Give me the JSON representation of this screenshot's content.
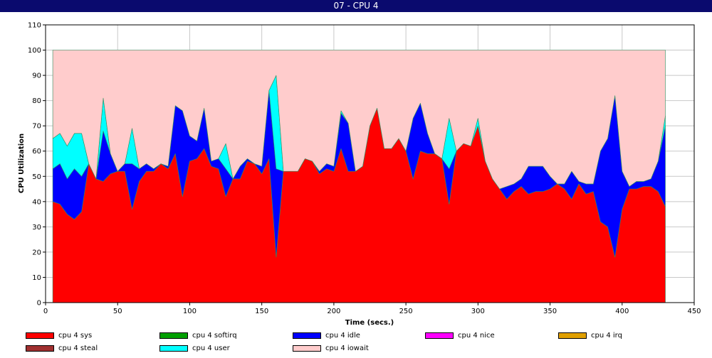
{
  "window": {
    "title": "07 - CPU 4"
  },
  "chart_data": {
    "type": "area",
    "stacked": true,
    "xlabel": "Time (secs.)",
    "ylabel": "CPU Utilization",
    "xlim": [
      0,
      450
    ],
    "ylim": [
      0,
      110
    ],
    "xticks": [
      0,
      50,
      100,
      150,
      200,
      250,
      300,
      350,
      400,
      450
    ],
    "yticks": [
      0,
      10,
      20,
      30,
      40,
      50,
      60,
      70,
      80,
      90,
      100,
      110
    ],
    "grid": true,
    "legend_position": "bottom",
    "x": [
      5,
      10,
      15,
      20,
      25,
      30,
      35,
      40,
      45,
      50,
      55,
      60,
      65,
      70,
      75,
      80,
      85,
      90,
      95,
      100,
      105,
      110,
      115,
      120,
      125,
      130,
      135,
      140,
      145,
      150,
      155,
      160,
      165,
      170,
      175,
      180,
      185,
      190,
      195,
      200,
      205,
      210,
      215,
      220,
      225,
      230,
      235,
      240,
      245,
      250,
      255,
      260,
      265,
      270,
      275,
      280,
      285,
      290,
      295,
      300,
      305,
      310,
      315,
      320,
      325,
      330,
      335,
      340,
      345,
      350,
      355,
      360,
      365,
      370,
      375,
      380,
      385,
      390,
      395,
      400,
      405,
      410,
      415,
      420,
      425,
      430
    ],
    "series": [
      {
        "name": "cpu 4 sys",
        "color": "#ff0000",
        "values": [
          40,
          39,
          35,
          33,
          36,
          55,
          49,
          48,
          51,
          52,
          52,
          37,
          48,
          52,
          52,
          55,
          53,
          59,
          42,
          56,
          57,
          61,
          54,
          53,
          42,
          49,
          49,
          56,
          55,
          51,
          57,
          18,
          52,
          52,
          52,
          57,
          56,
          51,
          53,
          52,
          61,
          52,
          52,
          54,
          70,
          77,
          61,
          61,
          65,
          60,
          49,
          60,
          59,
          59,
          57,
          39,
          60,
          63,
          62,
          70,
          56,
          49,
          45,
          41,
          44,
          46,
          43,
          44,
          44,
          45,
          47,
          45,
          41,
          47,
          43,
          44,
          32,
          30,
          18,
          37,
          45,
          45,
          46,
          46,
          44,
          38
        ]
      },
      {
        "name": "cpu 4 softirq",
        "color": "#00a000",
        "values": [
          0,
          0,
          0,
          0,
          0,
          0,
          0,
          0,
          0,
          0,
          0,
          0,
          0,
          0,
          0,
          0,
          0,
          0,
          0,
          0,
          0,
          0,
          0,
          0,
          0,
          0,
          0,
          0,
          0,
          0,
          0,
          0,
          0,
          0,
          0,
          0,
          0,
          0,
          0,
          0,
          0,
          0,
          0,
          0,
          0,
          0,
          0,
          0,
          0,
          0,
          0,
          0,
          0,
          0,
          0,
          0,
          0,
          0,
          0,
          0,
          0,
          0,
          0,
          0,
          0,
          0,
          0,
          0,
          0,
          0,
          0,
          0,
          0,
          0,
          0,
          0,
          0,
          0,
          0,
          0,
          0,
          0,
          0,
          0,
          0,
          0
        ]
      },
      {
        "name": "cpu 4 idle",
        "color": "#0000ff",
        "values": [
          13,
          16,
          14,
          20,
          14,
          0,
          0,
          20,
          8,
          0,
          3,
          18,
          5,
          3,
          1,
          0,
          1,
          19,
          34,
          10,
          7,
          16,
          2,
          4,
          11,
          0,
          5,
          1,
          0,
          3,
          27,
          35,
          0,
          0,
          0,
          0,
          0,
          1,
          2,
          2,
          14,
          19,
          0,
          0,
          0,
          0,
          0,
          0,
          0,
          0,
          24,
          19,
          8,
          0,
          0,
          14,
          0,
          0,
          0,
          0,
          0,
          0,
          0,
          5,
          3,
          3,
          11,
          10,
          10,
          5,
          0,
          2,
          11,
          1,
          4,
          3,
          28,
          35,
          64,
          15,
          1,
          3,
          2,
          3,
          12,
          32
        ]
      },
      {
        "name": "cpu 4 nice",
        "color": "#ff00ff",
        "values": [
          0,
          0,
          0,
          0,
          0,
          0,
          0,
          0,
          0,
          0,
          0,
          0,
          0,
          0,
          0,
          0,
          0,
          0,
          0,
          0,
          0,
          0,
          0,
          0,
          0,
          0,
          0,
          0,
          0,
          0,
          0,
          0,
          0,
          0,
          0,
          0,
          0,
          0,
          0,
          0,
          0,
          0,
          0,
          0,
          0,
          0,
          0,
          0,
          0,
          0,
          0,
          0,
          0,
          0,
          0,
          0,
          0,
          0,
          0,
          0,
          0,
          0,
          0,
          0,
          0,
          0,
          0,
          0,
          0,
          0,
          0,
          0,
          0,
          0,
          0,
          0,
          0,
          0,
          0,
          0,
          0,
          0,
          0,
          0,
          0,
          0
        ]
      },
      {
        "name": "cpu 4 irq",
        "color": "#e0a000",
        "values": [
          0,
          0,
          0,
          0,
          0,
          0,
          0,
          0,
          0,
          0,
          0,
          0,
          0,
          0,
          0,
          0,
          0,
          0,
          0,
          0,
          0,
          0,
          0,
          0,
          0,
          0,
          0,
          0,
          0,
          0,
          0,
          0,
          0,
          0,
          0,
          0,
          0,
          0,
          0,
          0,
          0,
          0,
          0,
          0,
          0,
          0,
          0,
          0,
          0,
          0,
          0,
          0,
          0,
          0,
          0,
          0,
          0,
          0,
          0,
          0,
          0,
          0,
          0,
          0,
          0,
          0,
          0,
          0,
          0,
          0,
          0,
          0,
          0,
          0,
          0,
          0,
          0,
          0,
          0,
          0,
          0,
          0,
          0,
          0,
          0,
          0
        ]
      },
      {
        "name": "cpu 4 steal",
        "color": "#a03030",
        "values": [
          0,
          0,
          0,
          0,
          0,
          0,
          0,
          0,
          0,
          0,
          0,
          0,
          0,
          0,
          0,
          0,
          0,
          0,
          0,
          0,
          0,
          0,
          0,
          0,
          0,
          0,
          0,
          0,
          0,
          0,
          0,
          0,
          0,
          0,
          0,
          0,
          0,
          0,
          0,
          0,
          0,
          0,
          0,
          0,
          0,
          0,
          0,
          0,
          0,
          0,
          0,
          0,
          0,
          0,
          0,
          0,
          0,
          0,
          0,
          0,
          0,
          0,
          0,
          0,
          0,
          0,
          0,
          0,
          0,
          0,
          0,
          0,
          0,
          0,
          0,
          0,
          0,
          0,
          0,
          0,
          0,
          0,
          0,
          0,
          0,
          0
        ]
      },
      {
        "name": "cpu 4 user",
        "color": "#00ffff",
        "values": [
          12,
          12,
          13,
          14,
          17,
          0,
          0,
          13,
          0,
          0,
          0,
          14,
          0,
          0,
          0,
          0,
          0,
          0,
          0,
          0,
          0,
          0,
          0,
          0,
          10,
          0,
          0,
          0,
          0,
          0,
          0,
          37,
          0,
          0,
          0,
          0,
          0,
          0,
          0,
          0,
          1,
          0,
          0,
          0,
          0,
          0,
          0,
          0,
          0,
          0,
          0,
          0,
          0,
          0,
          0,
          20,
          0,
          0,
          0,
          3,
          0,
          0,
          0,
          0,
          0,
          0,
          0,
          0,
          0,
          0,
          0,
          0,
          0,
          0,
          0,
          0,
          0,
          0,
          0,
          0,
          0,
          0,
          0,
          0,
          0,
          4
        ]
      },
      {
        "name": "cpu 4 iowait",
        "color": "#ffcccc",
        "values": [
          35,
          33,
          38,
          33,
          33,
          45,
          51,
          19,
          41,
          48,
          45,
          31,
          47,
          45,
          47,
          45,
          46,
          22,
          24,
          34,
          36,
          23,
          44,
          43,
          37,
          51,
          46,
          43,
          45,
          46,
          16,
          10,
          48,
          48,
          48,
          43,
          44,
          48,
          45,
          46,
          24,
          29,
          48,
          46,
          30,
          23,
          39,
          39,
          35,
          40,
          27,
          21,
          33,
          41,
          43,
          27,
          40,
          37,
          38,
          27,
          44,
          51,
          55,
          54,
          53,
          51,
          46,
          46,
          46,
          50,
          53,
          53,
          48,
          52,
          53,
          53,
          40,
          35,
          18,
          48,
          54,
          52,
          52,
          51,
          44,
          26
        ]
      }
    ]
  }
}
